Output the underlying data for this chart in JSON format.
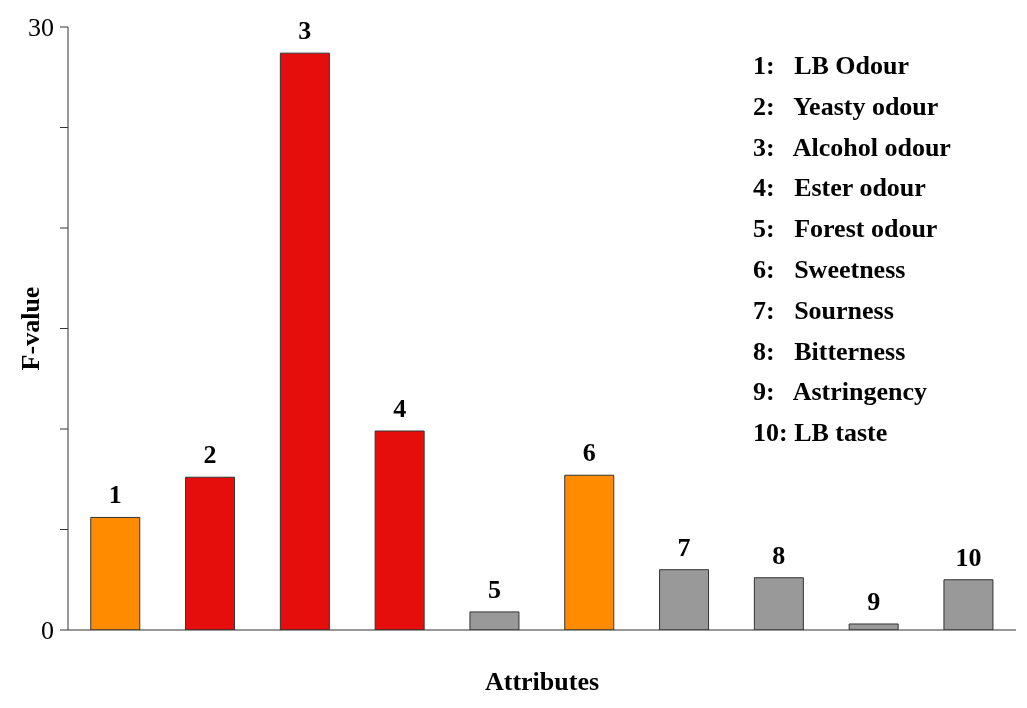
{
  "chart_data": {
    "type": "bar",
    "xlabel": "Attributes",
    "ylabel": "F-value",
    "categories": [
      "1",
      "2",
      "3",
      "4",
      "5",
      "6",
      "7",
      "8",
      "9",
      "10"
    ],
    "values": [
      5.6,
      7.6,
      28.7,
      9.9,
      0.9,
      7.7,
      3.0,
      2.6,
      0.3,
      2.5
    ],
    "colors": [
      "#ff8c00",
      "#e60d0d",
      "#e60d0d",
      "#e60d0d",
      "#999999",
      "#ff8c00",
      "#999999",
      "#999999",
      "#999999",
      "#999999"
    ],
    "ylim": [
      0,
      30
    ],
    "yticks": [
      0,
      {
        "value": 5,
        "label": null
      },
      {
        "value": 10,
        "label": null
      },
      {
        "value": 15,
        "label": null
      },
      {
        "value": 20,
        "label": null
      },
      {
        "value": 25,
        "label": null
      },
      30
    ],
    "tick_labels": "y",
    "grid": false,
    "legend": false,
    "annotations": [
      "1:   LB Odour",
      "2:   Yeasty odour",
      "3:   Alcohol odour",
      "4:   Ester odour",
      "5:   Forest odour",
      "6:   Sweetness",
      "7:   Sourness",
      "8:   Bitterness",
      "9:   Astringency",
      "10: LB taste"
    ]
  }
}
